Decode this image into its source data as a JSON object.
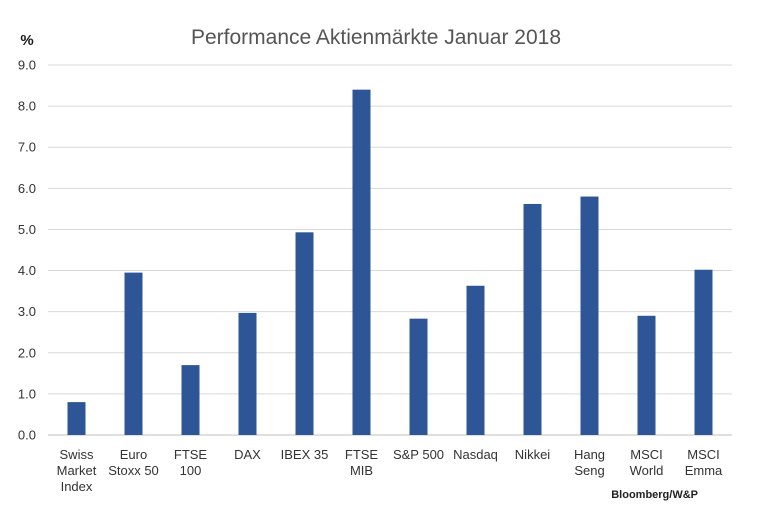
{
  "chart_data": {
    "type": "bar",
    "title": "Performance Aktienmärkte Januar 2018",
    "ylabel": "%",
    "source": "Bloomberg/W&P",
    "ylim": [
      0,
      9
    ],
    "yticks": [
      "0.0",
      "1.0",
      "2.0",
      "3.0",
      "4.0",
      "5.0",
      "6.0",
      "7.0",
      "8.0",
      "9.0"
    ],
    "grid": true,
    "bar_color": "#2e5596",
    "categories": [
      [
        "Swiss",
        "Market",
        "Index"
      ],
      [
        "Euro",
        "Stoxx 50"
      ],
      [
        "FTSE",
        "100"
      ],
      [
        "DAX"
      ],
      [
        "IBEX 35"
      ],
      [
        "FTSE",
        "MIB"
      ],
      [
        "S&P 500"
      ],
      [
        "Nasdaq"
      ],
      [
        "Nikkei"
      ],
      [
        "Hang",
        "Seng"
      ],
      [
        "MSCI",
        "World"
      ],
      [
        "MSCI",
        "Emma"
      ]
    ],
    "values": [
      0.8,
      3.95,
      1.7,
      2.97,
      4.93,
      8.4,
      2.83,
      3.63,
      5.62,
      5.8,
      2.9,
      4.02
    ]
  }
}
